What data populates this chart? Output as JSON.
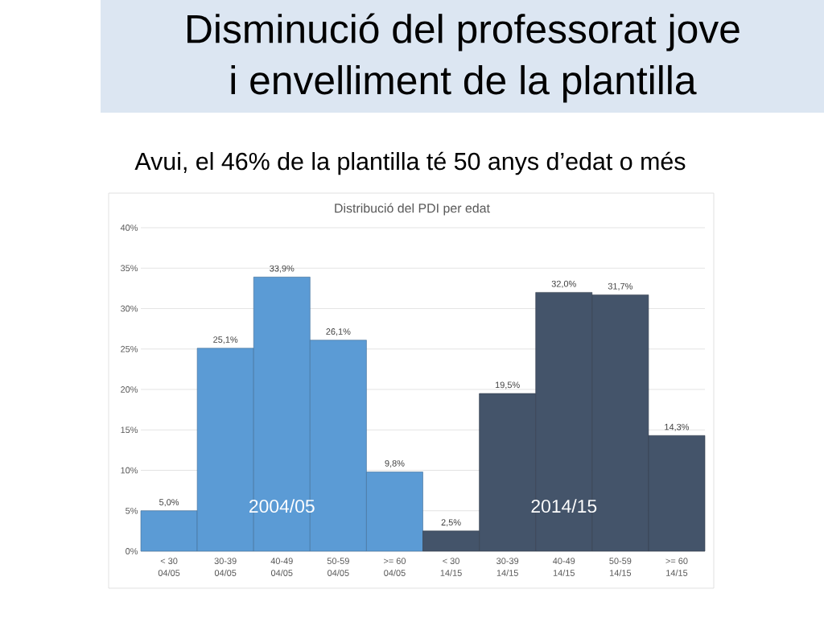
{
  "chart_data": {
    "type": "bar",
    "title": "Disminució del professorat jove\ni envelliment de la plantilla",
    "subtitle": "Avui, el 46% de la plantilla té 50 anys d’edat o més",
    "annotations": [
      "Distribució del PDI per edat"
    ],
    "categories": [
      "< 30\n04/05",
      "30-39\n04/05",
      "40-49\n04/05",
      "50-59\n04/05",
      ">= 60\n04/05",
      "< 30\n14/15",
      "30-39\n14/15",
      "40-49\n14/15",
      "50-59\n14/15",
      ">= 60\n14/15"
    ],
    "series": [
      {
        "name": "2004/05",
        "color": "#5b9bd5",
        "values": [
          5.0,
          25.1,
          33.9,
          26.1,
          9.8,
          null,
          null,
          null,
          null,
          null
        ],
        "value_labels": [
          "5,0%",
          "25,1%",
          "33,9%",
          "26,1%",
          "9,8%",
          null,
          null,
          null,
          null,
          null
        ]
      },
      {
        "name": "2014/15",
        "color": "#44546a",
        "values": [
          null,
          null,
          null,
          null,
          null,
          2.5,
          19.5,
          32.0,
          31.7,
          14.3
        ],
        "value_labels": [
          null,
          null,
          null,
          null,
          null,
          "2,5%",
          "19,5%",
          "32,0%",
          "31,7%",
          "14,3%"
        ]
      }
    ],
    "ylim": [
      0,
      40
    ],
    "yticks": [
      {
        "value": 0,
        "label": "0%"
      },
      {
        "value": 5,
        "label": "5%"
      },
      {
        "value": 10,
        "label": "10%"
      },
      {
        "value": 15,
        "label": "15%"
      },
      {
        "value": 20,
        "label": "20%"
      },
      {
        "value": 25,
        "label": "25%"
      },
      {
        "value": 30,
        "label": "30%"
      },
      {
        "value": 35,
        "label": "35%"
      },
      {
        "value": 40,
        "label": "40%"
      }
    ],
    "grid": "y"
  }
}
